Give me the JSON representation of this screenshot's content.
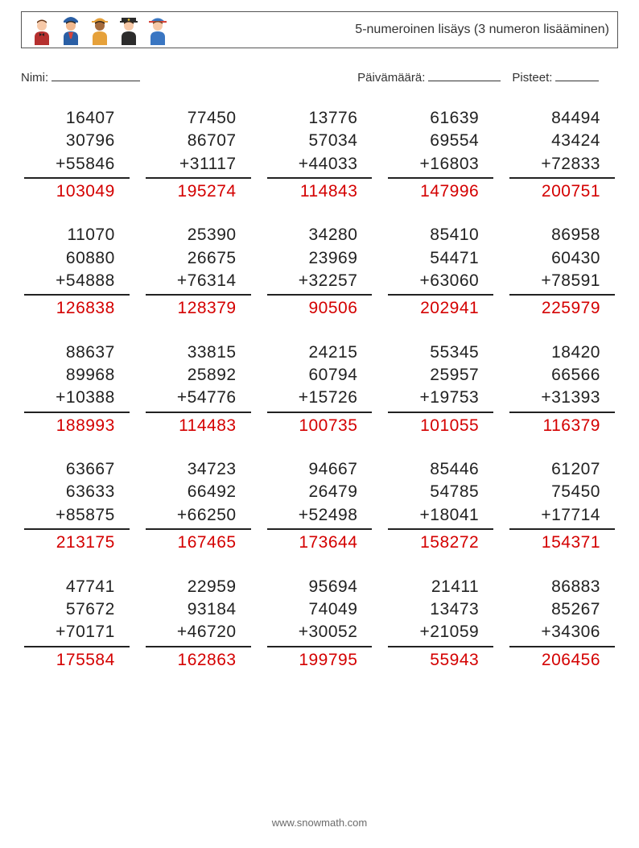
{
  "title": "5-numeroinen lisäys (3 numeron lisääminen)",
  "labels": {
    "name": "Nimi:",
    "date": "Päivämäärä:",
    "score": "Pisteet:"
  },
  "style": {
    "text_color": "#222222",
    "answer_color": "#d40000",
    "border_color": "#555555",
    "background": "#ffffff",
    "problem_fontsize": 21,
    "title_fontsize": 16,
    "label_fontsize": 15,
    "columns": 5,
    "rows": 5
  },
  "blanks": {
    "name_width": 110,
    "date_width": 90,
    "score_width": 54
  },
  "info_spacing": {
    "gap1": 270,
    "gap2": 14,
    "gap3": 10
  },
  "problems": [
    {
      "a": "16407",
      "b": "30796",
      "c": "55846",
      "ans": "103049"
    },
    {
      "a": "77450",
      "b": "86707",
      "c": "31117",
      "ans": "195274"
    },
    {
      "a": "13776",
      "b": "57034",
      "c": "44033",
      "ans": "114843"
    },
    {
      "a": "61639",
      "b": "69554",
      "c": "16803",
      "ans": "147996"
    },
    {
      "a": "84494",
      "b": "43424",
      "c": "72833",
      "ans": "200751"
    },
    {
      "a": "11070",
      "b": "60880",
      "c": "54888",
      "ans": "126838"
    },
    {
      "a": "25390",
      "b": "26675",
      "c": "76314",
      "ans": "128379"
    },
    {
      "a": "34280",
      "b": "23969",
      "c": "32257",
      "ans": "90506"
    },
    {
      "a": "85410",
      "b": "54471",
      "c": "63060",
      "ans": "202941"
    },
    {
      "a": "86958",
      "b": "60430",
      "c": "78591",
      "ans": "225979"
    },
    {
      "a": "88637",
      "b": "89968",
      "c": "10388",
      "ans": "188993"
    },
    {
      "a": "33815",
      "b": "25892",
      "c": "54776",
      "ans": "114483"
    },
    {
      "a": "24215",
      "b": "60794",
      "c": "15726",
      "ans": "100735"
    },
    {
      "a": "55345",
      "b": "25957",
      "c": "19753",
      "ans": "101055"
    },
    {
      "a": "18420",
      "b": "66566",
      "c": "31393",
      "ans": "116379"
    },
    {
      "a": "63667",
      "b": "63633",
      "c": "85875",
      "ans": "213175"
    },
    {
      "a": "34723",
      "b": "66492",
      "c": "66250",
      "ans": "167465"
    },
    {
      "a": "94667",
      "b": "26479",
      "c": "52498",
      "ans": "173644"
    },
    {
      "a": "85446",
      "b": "54785",
      "c": "18041",
      "ans": "158272"
    },
    {
      "a": "61207",
      "b": "75450",
      "c": "17714",
      "ans": "154371"
    },
    {
      "a": "47741",
      "b": "57672",
      "c": "70171",
      "ans": "175584"
    },
    {
      "a": "22959",
      "b": "93184",
      "c": "46720",
      "ans": "162863"
    },
    {
      "a": "95694",
      "b": "74049",
      "c": "30052",
      "ans": "199795"
    },
    {
      "a": "21411",
      "b": "13473",
      "c": "21059",
      "ans": "55943"
    },
    {
      "a": "86883",
      "b": "85267",
      "c": "34306",
      "ans": "206456"
    }
  ],
  "avatars": [
    {
      "name": "waiter",
      "skin": "#f7c9a8",
      "hair": "#6b3a1a",
      "body": "#b5302f",
      "accent": "#ffffff",
      "extra": "#222222"
    },
    {
      "name": "attendant",
      "skin": "#f2b98f",
      "hair": "#2a2a2a",
      "body": "#2a5fa5",
      "accent": "#d6443a",
      "extra": "#2a5fa5"
    },
    {
      "name": "worker",
      "skin": "#a56b3c",
      "hair": "#3a2a1a",
      "body": "#e6a13a",
      "accent": "#ffffff",
      "extra": "#e6a13a"
    },
    {
      "name": "officer",
      "skin": "#f7c9a8",
      "hair": "#3a2a1a",
      "body": "#2c2c2c",
      "accent": "#f3c934",
      "extra": "#2c2c2c"
    },
    {
      "name": "mechanic",
      "skin": "#f7c9a8",
      "hair": "#7a4a2a",
      "body": "#3a76c2",
      "accent": "#d6443a",
      "extra": "#3a76c2"
    }
  ],
  "footer": "www.snowmath.com"
}
